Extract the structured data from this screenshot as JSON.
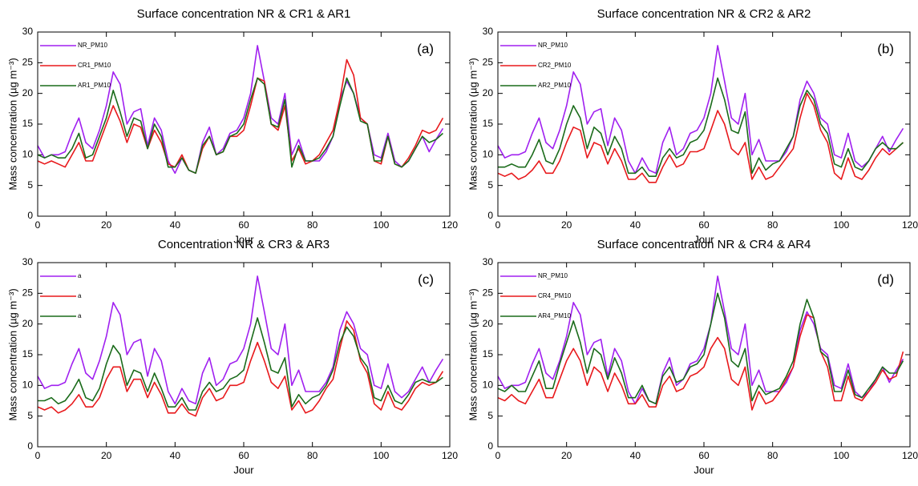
{
  "chart_data": [
    {
      "type": "line",
      "title": "Surface concentration NR & CR1 & AR1",
      "panel_label": "(a)",
      "xlabel": "Jour",
      "ylabel": "Mass concentration (µg m⁻³)",
      "xlim": [
        0,
        120
      ],
      "ylim": [
        0,
        30
      ],
      "xticks": [
        0,
        20,
        40,
        60,
        80,
        100,
        120
      ],
      "yticks": [
        0,
        5,
        10,
        15,
        20,
        25,
        30
      ],
      "legend": "upper left",
      "x": [
        0,
        2,
        4,
        6,
        8,
        10,
        12,
        14,
        16,
        18,
        20,
        22,
        24,
        26,
        28,
        30,
        32,
        34,
        36,
        38,
        40,
        42,
        44,
        46,
        48,
        50,
        52,
        54,
        56,
        58,
        60,
        62,
        64,
        66,
        68,
        70,
        72,
        74,
        76,
        78,
        80,
        82,
        84,
        86,
        88,
        90,
        92,
        94,
        96,
        98,
        100,
        102,
        104,
        106,
        108,
        110,
        112,
        114,
        116,
        118
      ],
      "series": [
        {
          "name": "NR_PM10",
          "color": "#a020f0",
          "values": [
            11.5,
            9.5,
            10,
            10,
            10.5,
            13.5,
            16,
            12,
            11,
            14,
            18,
            23.5,
            21.5,
            15,
            17,
            17.5,
            11.5,
            16,
            14,
            9,
            7,
            9.5,
            7.5,
            7,
            12,
            14.5,
            10,
            11,
            13.5,
            14,
            16,
            20,
            27.8,
            22,
            16,
            15,
            20,
            10,
            12.5,
            9,
            9,
            9,
            10.5,
            13,
            19,
            22,
            20,
            16,
            15,
            10,
            9.5,
            13.5,
            9,
            8,
            9,
            11,
            13,
            10.5,
            12.5,
            14.3
          ]
        },
        {
          "name": "CR1_PM10",
          "color": "#e8191c",
          "values": [
            9,
            8.5,
            9,
            8.5,
            8,
            10,
            12,
            9,
            9,
            12,
            15,
            18,
            15.5,
            12,
            15,
            14.5,
            11,
            14,
            12,
            8.5,
            8,
            10,
            7.5,
            7,
            11,
            13,
            10,
            10.5,
            13,
            13,
            14,
            18,
            22.5,
            22,
            15,
            14,
            18,
            9,
            11,
            8.5,
            9,
            10,
            12,
            14,
            19,
            25.5,
            23,
            16,
            15,
            9,
            8.5,
            13,
            8.5,
            8,
            9.5,
            11.5,
            14,
            13.5,
            14,
            16
          ]
        },
        {
          "name": "AR1_PM10",
          "color": "#1a6b1a",
          "values": [
            10,
            9.5,
            10,
            9.5,
            9.5,
            11,
            13.5,
            9.5,
            10,
            13,
            16,
            20.5,
            17,
            13,
            16,
            15.5,
            11,
            15,
            13,
            8,
            8,
            9.5,
            7.5,
            7,
            11.5,
            13,
            10,
            10.5,
            13,
            13.5,
            15,
            19,
            22.5,
            21.5,
            15,
            14.5,
            19,
            8,
            11.5,
            9,
            9,
            9.5,
            11,
            13,
            18,
            22.5,
            20,
            15.5,
            15,
            9,
            9,
            13,
            8.5,
            8,
            9,
            11,
            13,
            12,
            12.5,
            13.5
          ]
        }
      ]
    },
    {
      "type": "line",
      "title": "Surface concentration NR & CR2 & AR2",
      "panel_label": "(b)",
      "xlabel": "Jour",
      "ylabel": "Mass concentration (µg m⁻³)",
      "xlim": [
        0,
        120
      ],
      "ylim": [
        0,
        30
      ],
      "xticks": [
        0,
        20,
        40,
        60,
        80,
        100,
        120
      ],
      "yticks": [
        0,
        5,
        10,
        15,
        20,
        25,
        30
      ],
      "legend": "upper left",
      "x": [
        0,
        2,
        4,
        6,
        8,
        10,
        12,
        14,
        16,
        18,
        20,
        22,
        24,
        26,
        28,
        30,
        32,
        34,
        36,
        38,
        40,
        42,
        44,
        46,
        48,
        50,
        52,
        54,
        56,
        58,
        60,
        62,
        64,
        66,
        68,
        70,
        72,
        74,
        76,
        78,
        80,
        82,
        84,
        86,
        88,
        90,
        92,
        94,
        96,
        98,
        100,
        102,
        104,
        106,
        108,
        110,
        112,
        114,
        116,
        118
      ],
      "series": [
        {
          "name": "NR_PM10",
          "color": "#a020f0",
          "values": [
            11.5,
            9.5,
            10,
            10,
            10.5,
            13.5,
            16,
            12,
            11,
            14,
            18,
            23.5,
            21.5,
            15,
            17,
            17.5,
            11.5,
            16,
            14,
            9,
            7,
            9.5,
            7.5,
            7,
            12,
            14.5,
            10,
            11,
            13.5,
            14,
            16,
            20,
            27.8,
            22,
            16,
            15,
            20,
            10,
            12.5,
            9,
            9,
            9,
            10.5,
            13,
            19,
            22,
            20,
            16,
            15,
            10,
            9.5,
            13.5,
            9,
            8,
            9,
            11,
            13,
            10.5,
            12.5,
            14.3
          ]
        },
        {
          "name": "CR2_PM10",
          "color": "#e8191c",
          "values": [
            7,
            6.5,
            7,
            6,
            6.5,
            7.5,
            9,
            7,
            7,
            9,
            12,
            14.5,
            14,
            9.5,
            12,
            11.5,
            8.5,
            11,
            9,
            6,
            6,
            7,
            5.5,
            5.5,
            8,
            10,
            8,
            8.5,
            10.5,
            10.5,
            11,
            14,
            17.2,
            15,
            11,
            10,
            12,
            6,
            8,
            6,
            6.5,
            8,
            9.5,
            11,
            16,
            20,
            18,
            14,
            12,
            7,
            6,
            9.5,
            6.5,
            6,
            7.5,
            9.5,
            11,
            10,
            11,
            12
          ]
        },
        {
          "name": "AR2_PM10",
          "color": "#1a6b1a",
          "values": [
            8,
            8,
            8.5,
            8,
            8,
            10,
            12.5,
            9,
            8.5,
            11,
            15,
            18,
            16,
            11,
            14.5,
            13.5,
            10,
            13,
            11,
            7,
            7,
            8,
            6.5,
            6.5,
            9.5,
            11,
            9.5,
            10,
            12,
            12.5,
            14,
            18,
            22.5,
            19,
            14,
            13.5,
            17,
            7,
            9.5,
            7.5,
            8.5,
            9,
            11,
            13,
            18,
            20.5,
            19,
            15,
            13.5,
            8.5,
            8,
            11,
            8,
            7.5,
            9,
            11,
            12,
            11,
            11,
            12
          ]
        }
      ]
    },
    {
      "type": "line",
      "title": "Concentration NR & CR3 & AR3",
      "panel_label": "(c)",
      "xlabel": "Jour",
      "ylabel": "Mass concentration (µg m⁻³)",
      "xlim": [
        0,
        120
      ],
      "ylim": [
        0,
        30
      ],
      "xticks": [
        0,
        20,
        40,
        60,
        80,
        100,
        120
      ],
      "yticks": [
        0,
        5,
        10,
        15,
        20,
        25,
        30
      ],
      "legend": "upper left",
      "x": [
        0,
        2,
        4,
        6,
        8,
        10,
        12,
        14,
        16,
        18,
        20,
        22,
        24,
        26,
        28,
        30,
        32,
        34,
        36,
        38,
        40,
        42,
        44,
        46,
        48,
        50,
        52,
        54,
        56,
        58,
        60,
        62,
        64,
        66,
        68,
        70,
        72,
        74,
        76,
        78,
        80,
        82,
        84,
        86,
        88,
        90,
        92,
        94,
        96,
        98,
        100,
        102,
        104,
        106,
        108,
        110,
        112,
        114,
        116,
        118
      ],
      "series": [
        {
          "name": "a",
          "color": "#a020f0",
          "values": [
            11.5,
            9.5,
            10,
            10,
            10.5,
            13.5,
            16,
            12,
            11,
            14,
            18,
            23.5,
            21.5,
            15,
            17,
            17.5,
            11.5,
            16,
            14,
            9,
            7,
            9.5,
            7.5,
            7,
            12,
            14.5,
            10,
            11,
            13.5,
            14,
            16,
            20,
            27.8,
            22,
            16,
            15,
            20,
            10,
            12.5,
            9,
            9,
            9,
            10.5,
            13,
            19,
            22,
            20,
            16,
            15,
            10,
            9.5,
            13.5,
            9,
            8,
            9,
            11,
            13,
            10.5,
            12.5,
            14.3
          ]
        },
        {
          "name": "a",
          "color": "#e8191c",
          "values": [
            6.5,
            6,
            6.5,
            5.5,
            6,
            7,
            8.5,
            6.5,
            6.5,
            8,
            11,
            13,
            13,
            9,
            11,
            11,
            8,
            10.5,
            8.5,
            5.5,
            5.5,
            7,
            5.5,
            5,
            8,
            9.5,
            7.5,
            8,
            10,
            10,
            10.5,
            14,
            17,
            14,
            10.5,
            9.5,
            11.5,
            6,
            7.5,
            5.5,
            6,
            7.5,
            9.5,
            11,
            16,
            20.5,
            19,
            14,
            12,
            7,
            6,
            9,
            6.5,
            6,
            7.5,
            9.5,
            10.5,
            10,
            10.5,
            12.3
          ]
        },
        {
          "name": "a",
          "color": "#1a6b1a",
          "values": [
            7.5,
            7.5,
            8,
            7,
            7.5,
            9,
            11,
            8,
            7.5,
            9.5,
            13.5,
            16.5,
            15,
            10,
            12.5,
            12,
            9,
            12,
            9.5,
            6.5,
            6.5,
            8,
            6,
            6,
            9,
            10.5,
            9,
            9.5,
            11,
            11.5,
            12.5,
            17,
            21,
            17,
            12.5,
            12,
            14.5,
            6.5,
            8.5,
            7,
            8,
            8.5,
            10,
            12.5,
            17,
            19.5,
            18,
            14.5,
            13,
            8,
            7.5,
            10,
            7.5,
            7,
            8.5,
            10.5,
            11,
            10.5,
            10.5,
            11.3
          ]
        }
      ]
    },
    {
      "type": "line",
      "title": "Surface concentration NR & CR4 & AR4",
      "panel_label": "(d)",
      "xlabel": "Jour",
      "ylabel": "Mass concentration (µg m⁻³)",
      "xlim": [
        0,
        120
      ],
      "ylim": [
        0,
        30
      ],
      "xticks": [
        0,
        20,
        40,
        60,
        80,
        100,
        120
      ],
      "yticks": [
        0,
        5,
        10,
        15,
        20,
        25,
        30
      ],
      "legend": "upper left",
      "x": [
        0,
        2,
        4,
        6,
        8,
        10,
        12,
        14,
        16,
        18,
        20,
        22,
        24,
        26,
        28,
        30,
        32,
        34,
        36,
        38,
        40,
        42,
        44,
        46,
        48,
        50,
        52,
        54,
        56,
        58,
        60,
        62,
        64,
        66,
        68,
        70,
        72,
        74,
        76,
        78,
        80,
        82,
        84,
        86,
        88,
        90,
        92,
        94,
        96,
        98,
        100,
        102,
        104,
        106,
        108,
        110,
        112,
        114,
        116,
        118
      ],
      "series": [
        {
          "name": "NR_PM10",
          "color": "#a020f0",
          "values": [
            11.5,
            9.5,
            10,
            10,
            10.5,
            13.5,
            16,
            12,
            11,
            14,
            18,
            23.5,
            21.5,
            15,
            17,
            17.5,
            11.5,
            16,
            14,
            9,
            7,
            9.5,
            7.5,
            7,
            12,
            14.5,
            10,
            11,
            13.5,
            14,
            16,
            20,
            27.8,
            22,
            16,
            15,
            20,
            10,
            12.5,
            9,
            9,
            9,
            10.5,
            13,
            19,
            22,
            20,
            16,
            15,
            10,
            9.5,
            13.5,
            9,
            8,
            9,
            11,
            13,
            10.5,
            12.5,
            14.3
          ]
        },
        {
          "name": "CR4_PM10",
          "color": "#e8191c",
          "values": [
            8,
            7.5,
            8.5,
            7.5,
            7,
            9,
            11,
            8,
            8,
            11,
            14,
            16,
            14,
            10,
            13,
            12,
            9,
            12,
            10,
            7,
            7,
            8.5,
            6.5,
            6.5,
            10,
            11.5,
            9,
            9.5,
            11.5,
            12,
            13,
            16,
            17.8,
            16,
            11,
            10,
            13,
            6,
            9,
            7,
            7.5,
            9,
            11,
            13,
            18,
            21.5,
            21,
            15.5,
            13,
            7.5,
            7.5,
            11.5,
            8,
            7.5,
            9,
            10.5,
            12.5,
            11,
            11.5,
            15.5
          ]
        },
        {
          "name": "AR4_PM10",
          "color": "#1a6b1a",
          "values": [
            9.5,
            9,
            10,
            9,
            9,
            11.5,
            14,
            9.5,
            9.5,
            13.5,
            17,
            20.5,
            17,
            12,
            16,
            15,
            11,
            14.5,
            12,
            8,
            8,
            10,
            7.5,
            7,
            11.5,
            13,
            10.5,
            11,
            13,
            13.5,
            15,
            20,
            25,
            21,
            14,
            13,
            16,
            7.5,
            10,
            8.5,
            9,
            9.5,
            11.5,
            14,
            20,
            24,
            21,
            15.5,
            14.5,
            9,
            9,
            12.5,
            8.5,
            8,
            9.5,
            11,
            13,
            12,
            12,
            14
          ]
        }
      ]
    }
  ]
}
